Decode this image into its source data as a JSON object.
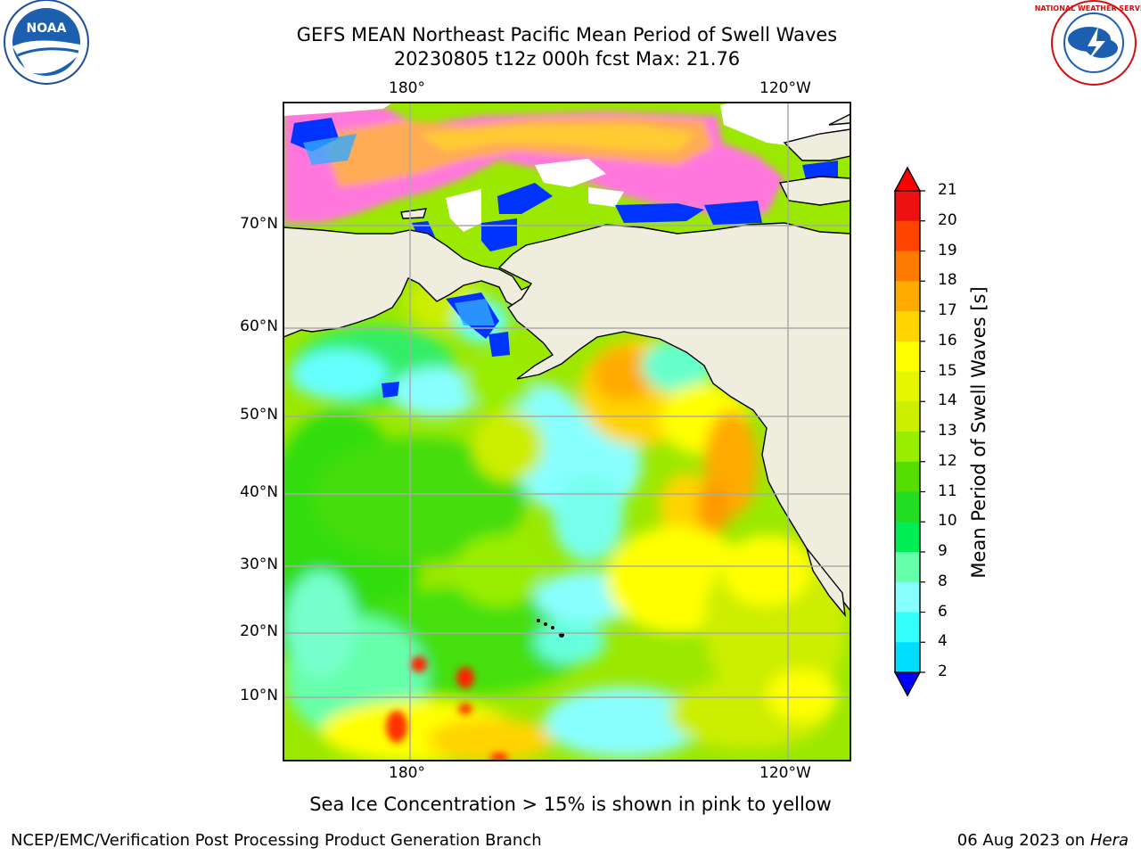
{
  "title_line1": "GEFS MEAN Northeast Pacific Mean Period of Swell Waves",
  "title_line2": "20230805 t12z 000h fcst   Max: 21.76",
  "map": {
    "lon_labels": [
      "180°",
      "120°W"
    ],
    "lat_labels": [
      "70°N",
      "60°N",
      "50°N",
      "40°N",
      "30°N",
      "20°N",
      "10°N"
    ],
    "grid": true
  },
  "colorbar": {
    "title": "Mean Period of Swell Waves [s]",
    "ticks": [
      "21",
      "20",
      "19",
      "18",
      "17",
      "16",
      "15",
      "14",
      "13",
      "12",
      "11",
      "10",
      "9",
      "8",
      "6",
      "4",
      "2"
    ],
    "colors": [
      "#ee1111",
      "#ff4400",
      "#ff7a00",
      "#ffaa00",
      "#ffd400",
      "#ffff00",
      "#e6f500",
      "#ccee00",
      "#99ee00",
      "#55dd00",
      "#22dd22",
      "#00ee55",
      "#66ffaa",
      "#88ffff",
      "#33ffff",
      "#00ddff",
      "#0066ff"
    ],
    "min_color": "#0000ff",
    "max_color": "#ff0000"
  },
  "note": "Sea Ice Concentration > 15% is shown in pink to yellow",
  "footer_left": "NCEP/EMC/Verification Post Processing Product Generation Branch",
  "footer_date": "06 Aug 2023 on",
  "footer_host": "Hera",
  "logos": {
    "noaa_text": "NOAA",
    "nws_text": "NATIONAL WEATHER SERVICE"
  }
}
